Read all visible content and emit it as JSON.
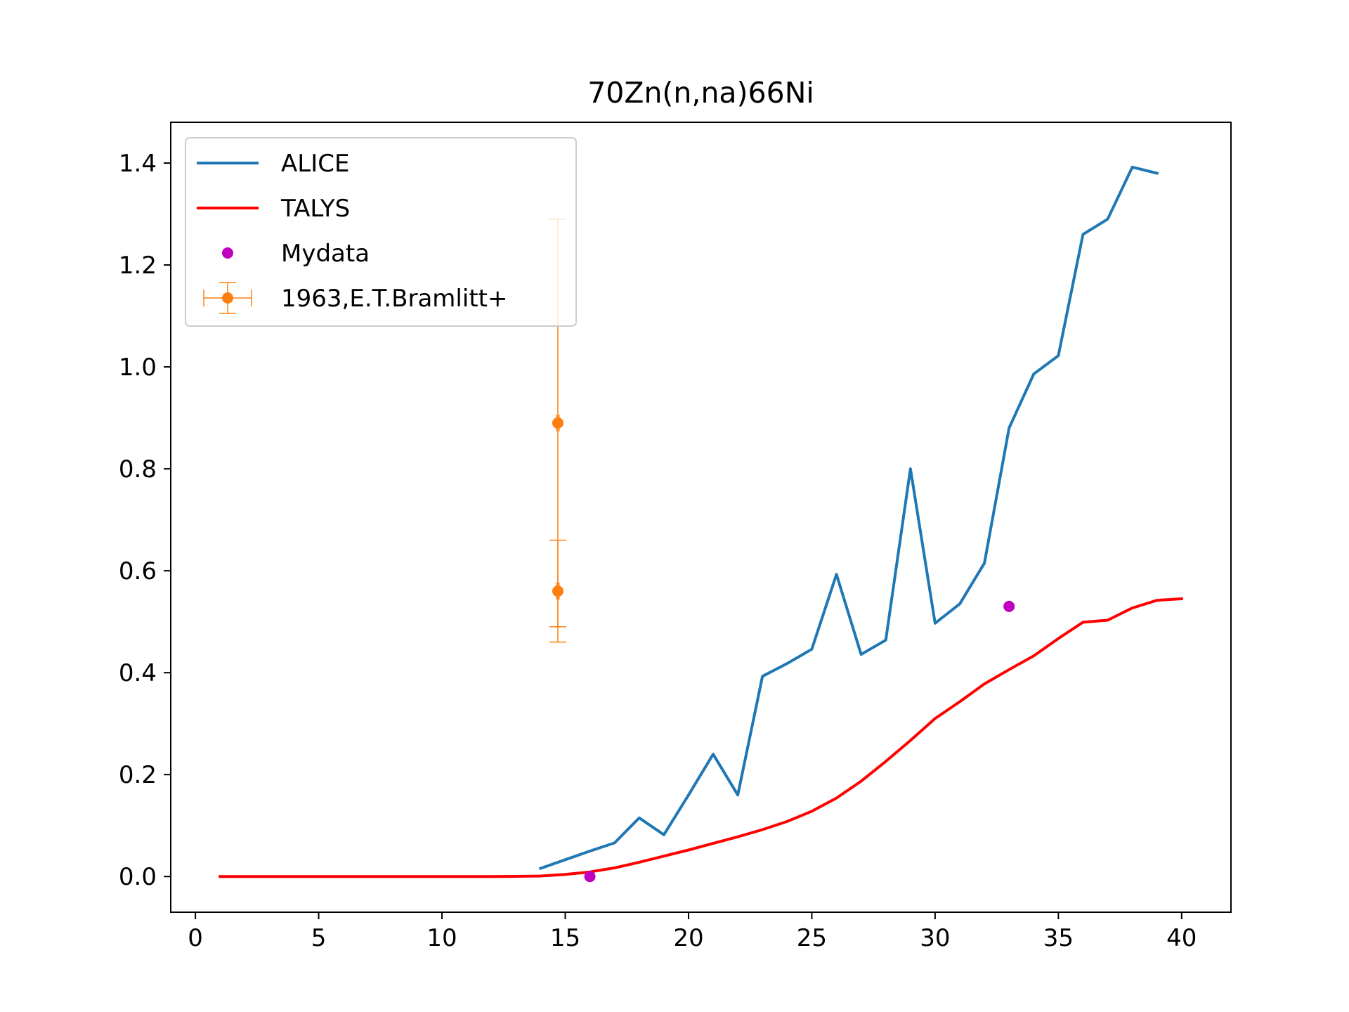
{
  "chart_data": {
    "type": "line",
    "title": "70Zn(n,na)66Ni",
    "xlabel": "",
    "ylabel": "",
    "xlim": [
      -1,
      42
    ],
    "ylim": [
      -0.07,
      1.48
    ],
    "xticks": [
      0,
      5,
      10,
      15,
      20,
      25,
      30,
      35,
      40
    ],
    "yticks": [
      0.0,
      0.2,
      0.4,
      0.6,
      0.8,
      1.0,
      1.2,
      1.4
    ],
    "xtick_labels": [
      "0",
      "5",
      "10",
      "15",
      "20",
      "25",
      "30",
      "35",
      "40"
    ],
    "ytick_labels": [
      "0.0",
      "0.2",
      "0.4",
      "0.6",
      "0.8",
      "1.0",
      "1.2",
      "1.4"
    ],
    "grid": false,
    "legend_position": "upper-left",
    "series": [
      {
        "name": "ALICE",
        "kind": "line",
        "color": "#1f77b4",
        "x": [
          14,
          15,
          16,
          17,
          18,
          19,
          20,
          21,
          22,
          23,
          24,
          25,
          26,
          27,
          28,
          29,
          30,
          31,
          32,
          33,
          34,
          35,
          36,
          37,
          38,
          39
        ],
        "y": [
          0.016,
          0.033,
          0.05,
          0.066,
          0.115,
          0.082,
          0.16,
          0.24,
          0.16,
          0.393,
          0.418,
          0.446,
          0.593,
          0.436,
          0.464,
          0.8,
          0.497,
          0.535,
          0.615,
          0.88,
          0.986,
          1.022,
          1.26,
          1.29,
          1.392,
          1.38
        ]
      },
      {
        "name": "TALYS",
        "kind": "line",
        "color": "#ff0000",
        "x": [
          1,
          2,
          3,
          4,
          5,
          6,
          7,
          8,
          9,
          10,
          11,
          12,
          13,
          14,
          15,
          16,
          17,
          18,
          19,
          20,
          21,
          22,
          23,
          24,
          25,
          26,
          27,
          28,
          29,
          30,
          31,
          32,
          33,
          34,
          35,
          36,
          37,
          38,
          39,
          40
        ],
        "y": [
          0,
          0,
          0,
          0,
          0,
          0,
          0,
          0,
          0,
          0,
          0,
          0,
          0.0003,
          0.001,
          0.004,
          0.009,
          0.017,
          0.028,
          0.04,
          0.052,
          0.065,
          0.078,
          0.092,
          0.108,
          0.128,
          0.154,
          0.187,
          0.226,
          0.267,
          0.31,
          0.343,
          0.378,
          0.406,
          0.433,
          0.467,
          0.499,
          0.503,
          0.527,
          0.542,
          0.545
        ]
      },
      {
        "name": "Mydata",
        "kind": "scatter",
        "color": "#bf00bf",
        "x": [
          16,
          33
        ],
        "y": [
          0.0,
          0.53
        ]
      },
      {
        "name": "1963,E.T.Bramlitt+",
        "kind": "errorbar",
        "color": "#ff7f0e",
        "x": [
          14.7,
          14.7
        ],
        "y": [
          0.89,
          0.56
        ],
        "y_err_low": [
          0.4,
          0.1
        ],
        "y_err_high": [
          0.4,
          0.1
        ],
        "x_err": [
          0.05,
          0.05
        ]
      }
    ]
  }
}
